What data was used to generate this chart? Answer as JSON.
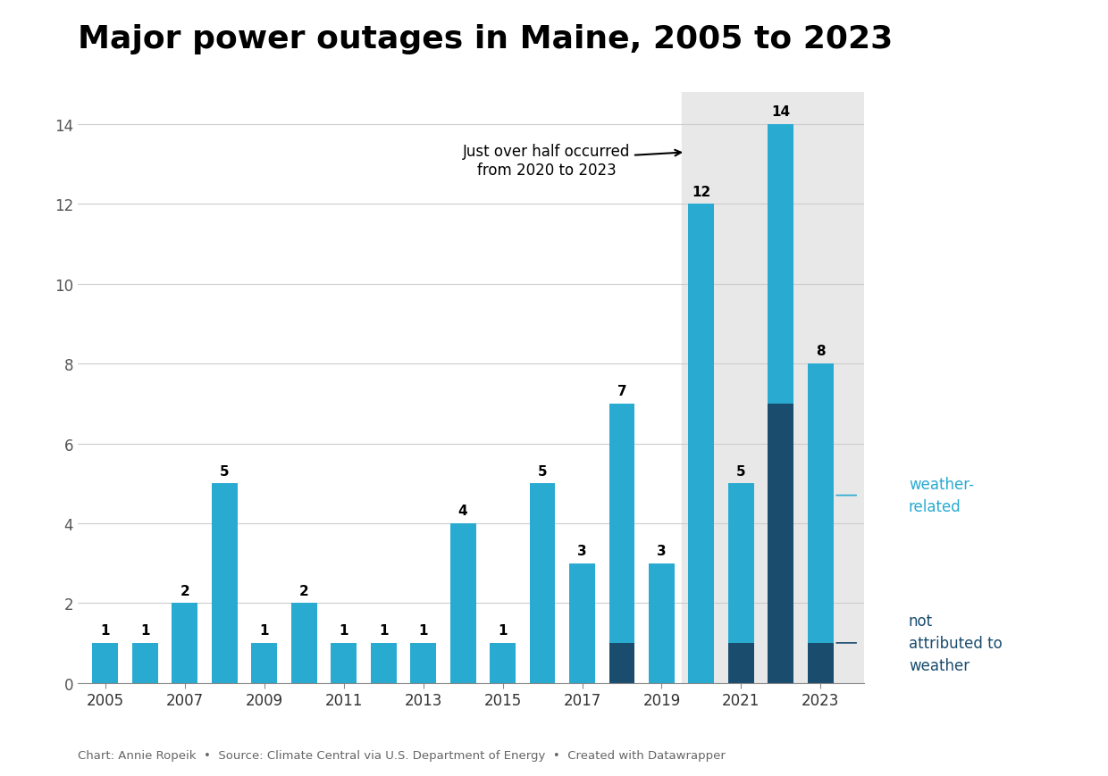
{
  "years": [
    2005,
    2006,
    2007,
    2008,
    2009,
    2010,
    2011,
    2012,
    2013,
    2014,
    2015,
    2016,
    2017,
    2018,
    2019,
    2020,
    2021,
    2022,
    2023
  ],
  "weather_related": [
    1,
    1,
    2,
    5,
    1,
    2,
    1,
    1,
    1,
    4,
    1,
    5,
    3,
    6,
    3,
    12,
    4,
    7,
    7
  ],
  "not_weather": [
    0,
    0,
    0,
    0,
    0,
    0,
    0,
    0,
    0,
    0,
    0,
    0,
    0,
    1,
    0,
    0,
    1,
    7,
    1
  ],
  "totals": [
    1,
    1,
    2,
    5,
    1,
    2,
    1,
    1,
    1,
    4,
    1,
    5,
    3,
    7,
    3,
    12,
    5,
    14,
    8
  ],
  "color_weather": "#29AAD1",
  "color_not_weather": "#1A4C6E",
  "color_highlight_bg": "#E8E8E8",
  "title": "Major power outages in Maine, 2005 to 2023",
  "annotation_text": "Just over half occurred\nfrom 2020 to 2023",
  "highlight_start_year": 2020,
  "highlight_end_year": 2023,
  "yticks": [
    0,
    2,
    4,
    6,
    8,
    10,
    12,
    14
  ],
  "xtick_years": [
    2005,
    2007,
    2009,
    2011,
    2013,
    2015,
    2017,
    2019,
    2021,
    2023
  ],
  "footer_text": "Chart: Annie Ropeik  •  Source: Climate Central via U.S. Department of Energy  •  Created with Datawrapper",
  "title_fontsize": 26,
  "bar_width": 0.65,
  "ylim_max": 14.8,
  "legend_weather_label": "weather-\nrelated",
  "legend_not_weather_label": "not\nattributed to\nweather",
  "legend_color_weather": "#29AAD1",
  "legend_color_not_weather": "#1A4C6E"
}
